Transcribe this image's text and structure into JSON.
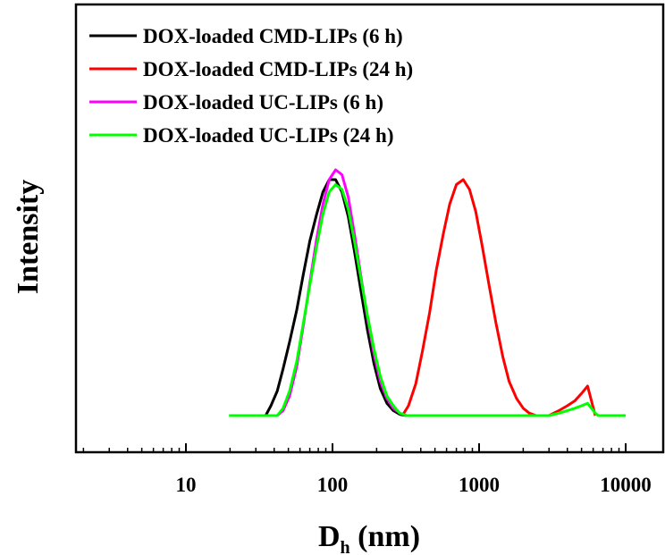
{
  "chart_data": {
    "type": "line",
    "xlabel": "D",
    "xlabel_sub": "h",
    "xlabel_unit": "(nm)",
    "ylabel": "Intensity",
    "xscale": "log",
    "xlim": [
      2,
      10000
    ],
    "ylim": [
      -0.12,
      1.0
    ],
    "x_ticks": [
      10,
      100,
      1000,
      10000
    ],
    "x_tick_labels": [
      "10",
      "100",
      "1000",
      "10000"
    ],
    "y_ticks_shown": false,
    "grid": false,
    "legend_position": "top-left",
    "series": [
      {
        "name": "DOX-loaded CMD-LIPs (6 h)",
        "color": "#000000",
        "x": [
          35,
          38,
          42,
          46,
          51,
          57,
          63,
          70,
          78,
          86,
          95,
          105,
          116,
          128,
          141,
          156,
          173,
          192,
          212,
          235,
          260,
          288,
          320
        ],
        "y": [
          0,
          0.04,
          0.1,
          0.19,
          0.3,
          0.43,
          0.57,
          0.71,
          0.82,
          0.91,
          0.96,
          0.96,
          0.91,
          0.81,
          0.67,
          0.51,
          0.35,
          0.21,
          0.11,
          0.05,
          0.02,
          0.005,
          0
        ]
      },
      {
        "name": "DOX-loaded CMD-LIPs (24 h)",
        "color": "#ff0000",
        "x": [
          300,
          330,
          370,
          410,
          460,
          510,
          570,
          630,
          700,
          780,
          860,
          950,
          1050,
          1170,
          1300,
          1450,
          1600,
          1800,
          2000,
          2200,
          2450,
          2700,
          3000,
          3500,
          4000,
          4500,
          5000,
          5500,
          6200
        ],
        "y": [
          0,
          0.04,
          0.13,
          0.26,
          0.42,
          0.59,
          0.74,
          0.86,
          0.94,
          0.96,
          0.92,
          0.83,
          0.69,
          0.53,
          0.38,
          0.24,
          0.14,
          0.07,
          0.03,
          0.01,
          0,
          0,
          0,
          0.02,
          0.04,
          0.06,
          0.09,
          0.12,
          0
        ]
      },
      {
        "name": "DOX-loaded UC-LIPs (6 h)",
        "color": "#ff00ff",
        "x": [
          42,
          46,
          51,
          57,
          63,
          70,
          78,
          86,
          95,
          105,
          116,
          128,
          141,
          156,
          173,
          192,
          212,
          235,
          260,
          288,
          320,
          350
        ],
        "y": [
          0,
          0.02,
          0.08,
          0.2,
          0.36,
          0.54,
          0.72,
          0.86,
          0.96,
          1.0,
          0.98,
          0.89,
          0.74,
          0.57,
          0.4,
          0.25,
          0.14,
          0.07,
          0.03,
          0.01,
          0,
          0
        ]
      },
      {
        "name": "DOX-loaded UC-LIPs (24 h)",
        "color": "#00ff00",
        "x": [
          30,
          42,
          46,
          51,
          57,
          63,
          70,
          78,
          86,
          95,
          105,
          116,
          128,
          141,
          156,
          173,
          192,
          212,
          235,
          260,
          288,
          320,
          360,
          400,
          3000,
          3500,
          4000,
          4500,
          5000,
          5500,
          6200,
          6500,
          10000
        ],
        "y": [
          0,
          0,
          0.03,
          0.1,
          0.22,
          0.37,
          0.53,
          0.69,
          0.82,
          0.91,
          0.94,
          0.92,
          0.84,
          0.71,
          0.56,
          0.41,
          0.27,
          0.16,
          0.08,
          0.04,
          0.01,
          0,
          0,
          0,
          0,
          0.01,
          0.02,
          0.03,
          0.04,
          0.05,
          0.01,
          0,
          0
        ]
      }
    ]
  }
}
